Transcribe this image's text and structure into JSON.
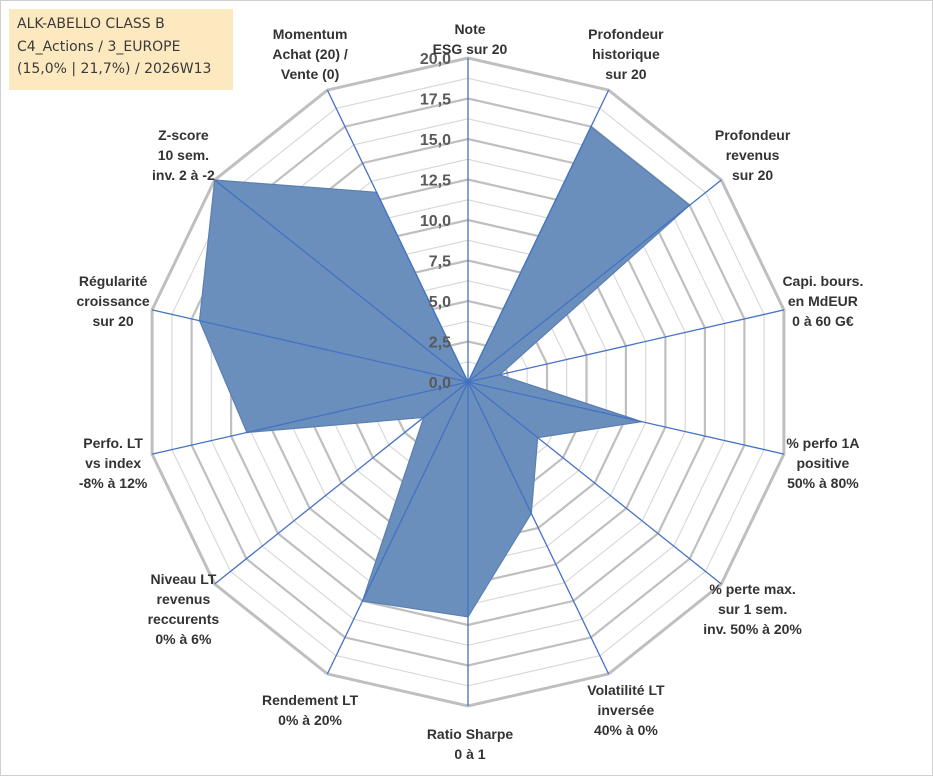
{
  "info_box": {
    "line1": "ALK-ABELLO CLASS B",
    "line2": "C4_Actions / 3_EUROPE",
    "line3": "(15,0% | 21,7%) / 2026W13"
  },
  "chart_data": {
    "type": "radar",
    "title": "",
    "rlim": [
      0,
      20
    ],
    "ticks": [
      "0,0",
      "2,5",
      "5,0",
      "7,5",
      "10,0",
      "12,5",
      "15,0",
      "17,5",
      "20,0"
    ],
    "categories": [
      [
        "Note",
        "ESG sur 20"
      ],
      [
        "Profondeur",
        "historique",
        "sur 20"
      ],
      [
        "Profondeur",
        "revenus",
        "sur 20"
      ],
      [
        "Capi. bours.",
        "en MdEUR",
        "0 à 60 G€"
      ],
      [
        "% perfo 1A",
        "positive",
        "50% à 80%"
      ],
      [
        "% perte max.",
        "sur 1 sem.",
        "inv. 50% à 20%"
      ],
      [
        "Volatilité LT",
        "inversée",
        "40% à 0%"
      ],
      [
        "Ratio Sharpe",
        "0 à 1"
      ],
      [
        "Rendement LT",
        "0% à 20%"
      ],
      [
        "Niveau LT",
        "revenus",
        "reccurents",
        "0% à 6%"
      ],
      [
        "Perfo. LT",
        "vs index",
        "-8% à 12%"
      ],
      [
        "Régularité",
        "croissance",
        "sur 20"
      ],
      [
        "Z-score",
        "10 sem.",
        "inv. 2 à -2"
      ],
      [
        "Momentum",
        "Achat (20) /",
        "Vente (0)"
      ]
    ],
    "series": [
      {
        "name": "ALK-ABELLO CLASS B",
        "values": [
          0,
          17.5,
          17.5,
          2,
          11,
          5.5,
          9,
          14.5,
          15,
          3.5,
          14,
          17,
          20,
          13
        ]
      }
    ],
    "colors": {
      "fill": "#6a8fbd",
      "stroke": "#5a7fb0",
      "spoke": "#4472c4",
      "grid_major": "#bfbfbf",
      "grid_minor": "#d9d9d9"
    }
  }
}
